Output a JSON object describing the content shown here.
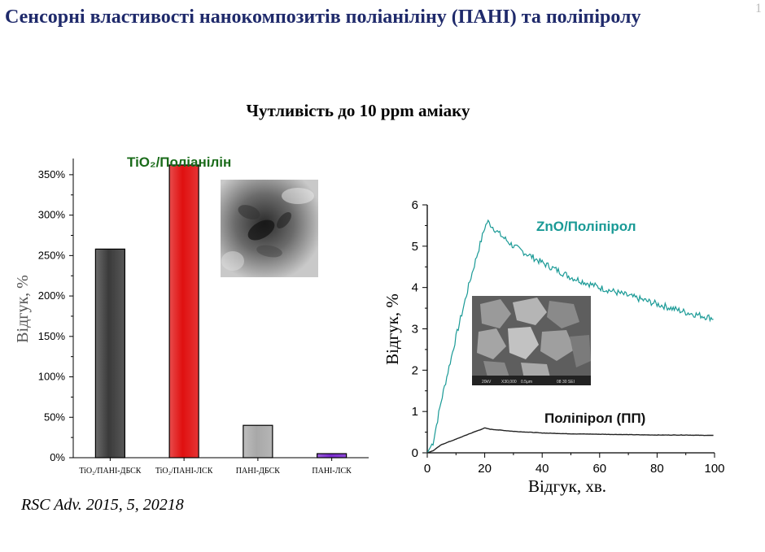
{
  "slide": {
    "title": "Сенсорні властивості нанокомпозитів поліаніліну (ПАНІ) та поліпіролу",
    "page_number": "1",
    "subtitle": "Чутливість до 10 ppm аміаку",
    "citation": "RSC Adv. 2015, 5, 20218"
  },
  "chart_data": [
    {
      "type": "bar",
      "title": "TiO₂/Поліанілін",
      "title_color": "#1a6b1a",
      "xlabel": "",
      "ylabel": "Відгук, %",
      "categories": [
        "TiO₂/ПАНІ-ДБСК",
        "TiO₂/ПАНІ-ЛСК",
        "ПАНІ-ДБСК",
        "ПАНІ-ЛСК"
      ],
      "values": [
        258,
        362,
        40,
        5
      ],
      "colors": [
        "#3a3a3a",
        "#e01010",
        "#a8a8a8",
        "#7a2ad0"
      ],
      "ylim": [
        0,
        370
      ],
      "yticks": [
        0,
        50,
        100,
        150,
        200,
        250,
        300,
        350
      ],
      "ytick_labels": [
        "0%",
        "50%",
        "100%",
        "150%",
        "200%",
        "250%",
        "300%",
        "350%"
      ],
      "grid": false
    },
    {
      "type": "line",
      "xlabel": "Відгук, хв.",
      "ylabel": "Відгук, %",
      "xlim": [
        0,
        100
      ],
      "ylim": [
        0,
        6
      ],
      "xticks": [
        0,
        20,
        40,
        60,
        80,
        100
      ],
      "yticks": [
        0,
        1,
        2,
        3,
        4,
        5,
        6
      ],
      "grid": false,
      "series": [
        {
          "name": "ZnO/Поліпірол",
          "color": "#1a9a96",
          "x": [
            0,
            2,
            5,
            10,
            15,
            20,
            21,
            25,
            30,
            40,
            50,
            60,
            70,
            80,
            90,
            100
          ],
          "y": [
            0,
            0.25,
            1.3,
            2.8,
            4.2,
            5.45,
            5.6,
            5.3,
            5.0,
            4.6,
            4.25,
            4.0,
            3.8,
            3.6,
            3.4,
            3.25
          ]
        },
        {
          "name": "Поліпірол (ПП)",
          "color": "#222222",
          "x": [
            0,
            2,
            5,
            10,
            15,
            20,
            22,
            30,
            40,
            50,
            60,
            70,
            80,
            90,
            100
          ],
          "y": [
            0,
            0.05,
            0.2,
            0.33,
            0.47,
            0.6,
            0.57,
            0.52,
            0.48,
            0.46,
            0.45,
            0.44,
            0.43,
            0.43,
            0.42
          ]
        }
      ]
    }
  ]
}
